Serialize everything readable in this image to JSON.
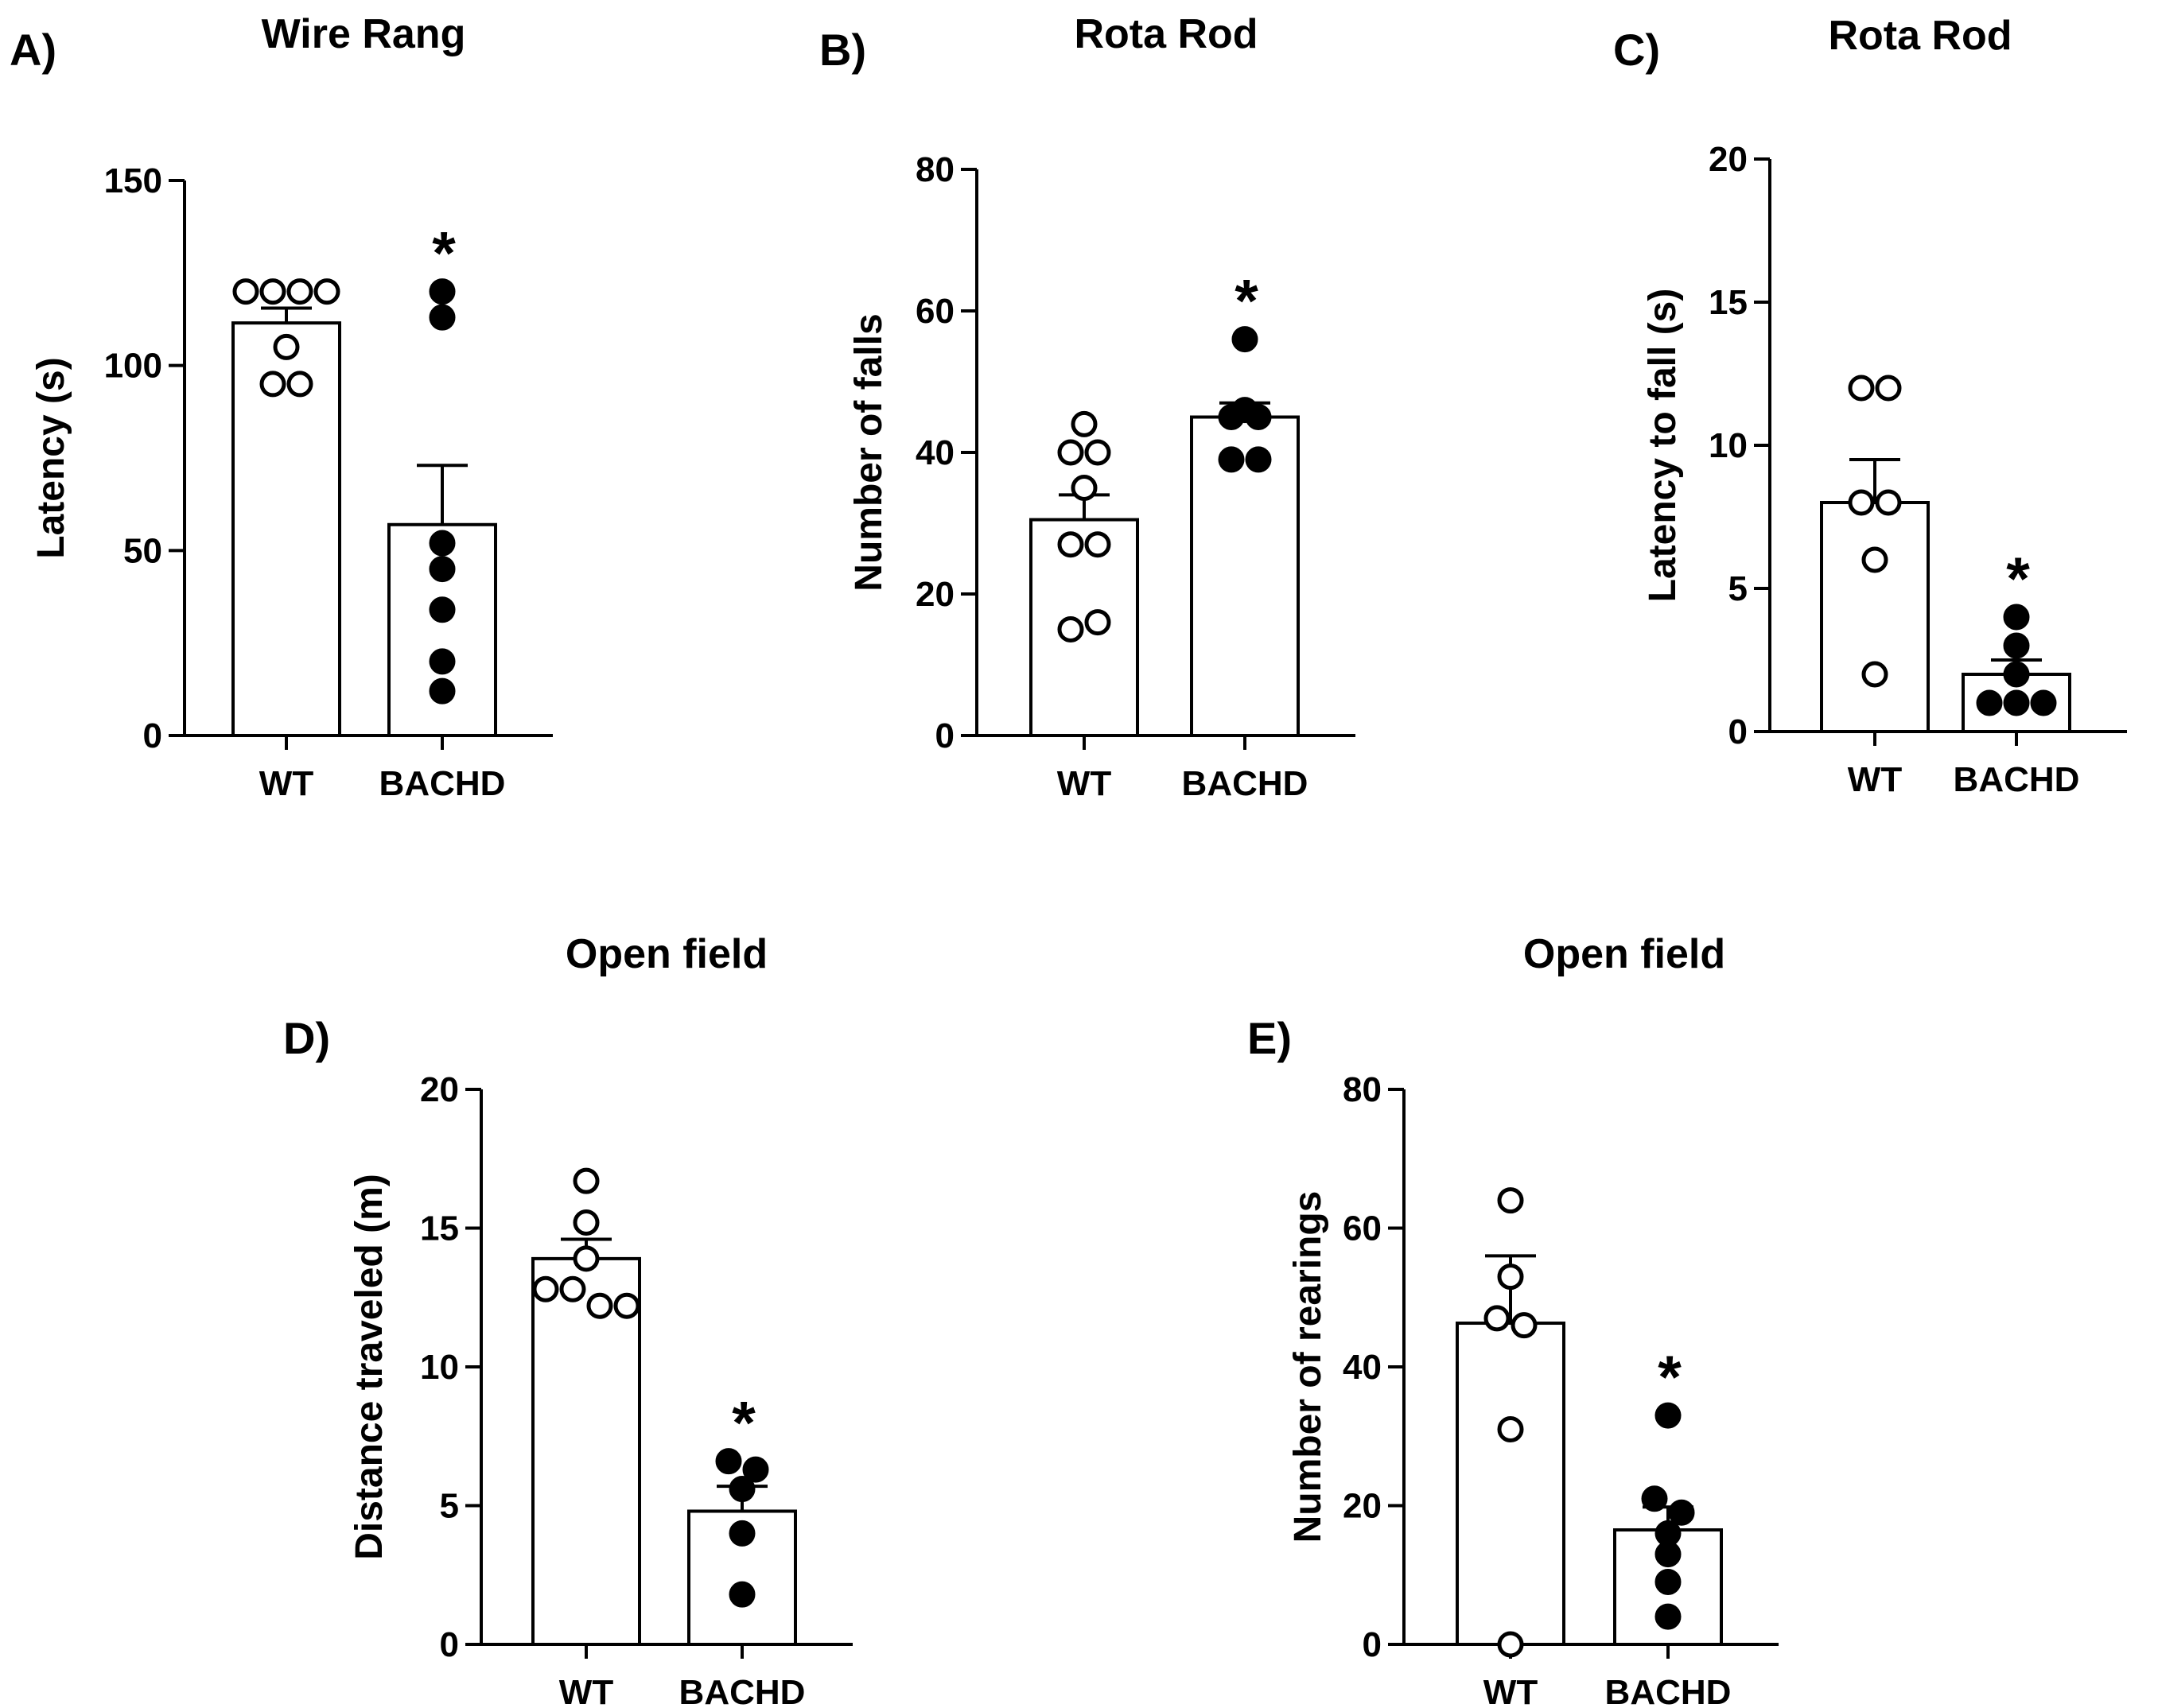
{
  "chart_data": [
    {
      "id": "A",
      "type": "bar",
      "letter": "A)",
      "title": "Wire Rang",
      "xlabel": "",
      "ylabel": "Latency (s)",
      "ylim": [
        0,
        150
      ],
      "yticks": [
        0,
        50,
        100,
        150
      ],
      "categories": [
        "WT",
        "BACHD"
      ],
      "values": [
        111.5,
        57
      ],
      "sem": [
        4,
        16
      ],
      "points": [
        [
          120,
          120,
          120,
          120,
          105,
          95,
          95
        ],
        [
          120,
          113,
          52,
          45,
          34,
          20,
          12
        ]
      ],
      "filled": [
        false,
        true
      ],
      "significance": [
        "",
        "*"
      ]
    },
    {
      "id": "B",
      "type": "bar",
      "letter": "B)",
      "title": "Rota Rod",
      "xlabel": "",
      "ylabel": "Number of falls",
      "ylim": [
        0,
        80
      ],
      "yticks": [
        0,
        20,
        40,
        60,
        80
      ],
      "categories": [
        "WT",
        "BACHD"
      ],
      "values": [
        30.5,
        45
      ],
      "sem": [
        3.5,
        2
      ],
      "points": [
        [
          40,
          40,
          44,
          35,
          27,
          27,
          15,
          16
        ],
        [
          56,
          45,
          45,
          46,
          39,
          39
        ]
      ],
      "filled": [
        false,
        true
      ],
      "significance": [
        "",
        "*"
      ]
    },
    {
      "id": "C",
      "type": "bar",
      "letter": "C)",
      "title": "Rota Rod",
      "xlabel": "",
      "ylabel": "Latency to fall (s)",
      "ylim": [
        0,
        20
      ],
      "yticks": [
        0,
        5,
        10,
        15,
        20
      ],
      "categories": [
        "WT",
        "BACHD"
      ],
      "values": [
        8,
        2
      ],
      "sem": [
        1.5,
        0.5
      ],
      "points": [
        [
          12,
          12,
          8,
          8,
          6,
          2
        ],
        [
          4,
          3,
          2,
          1,
          1,
          1
        ]
      ],
      "filled": [
        false,
        true
      ],
      "significance": [
        "",
        "*"
      ]
    },
    {
      "id": "D",
      "type": "bar",
      "letter": "D)",
      "title": "Open field",
      "xlabel": "",
      "ylabel": "Distance traveled (m)",
      "ylim": [
        0,
        20
      ],
      "yticks": [
        0,
        5,
        10,
        15,
        20
      ],
      "categories": [
        "WT",
        "BACHD"
      ],
      "values": [
        13.9,
        4.8
      ],
      "sem": [
        0.7,
        0.9
      ],
      "points": [
        [
          16.7,
          15.2,
          13.9,
          12.8,
          12.8,
          12.2,
          12.2
        ],
        [
          6.6,
          6.3,
          5.6,
          4,
          1.8
        ]
      ],
      "filled": [
        false,
        true
      ],
      "significance": [
        "",
        "*"
      ]
    },
    {
      "id": "E",
      "type": "bar",
      "letter": "E)",
      "title": "Open field",
      "xlabel": "",
      "ylabel": "Number of rearings",
      "ylim": [
        0,
        80
      ],
      "yticks": [
        0,
        20,
        40,
        60,
        80
      ],
      "categories": [
        "WT",
        "BACHD"
      ],
      "values": [
        46.3,
        16.5
      ],
      "sem": [
        9.7,
        3.3
      ],
      "points": [
        [
          64,
          53,
          47,
          46,
          31,
          0
        ],
        [
          33,
          21,
          19,
          16,
          13,
          9,
          4
        ]
      ],
      "filled": [
        false,
        true
      ],
      "significance": [
        "",
        "*"
      ]
    }
  ]
}
